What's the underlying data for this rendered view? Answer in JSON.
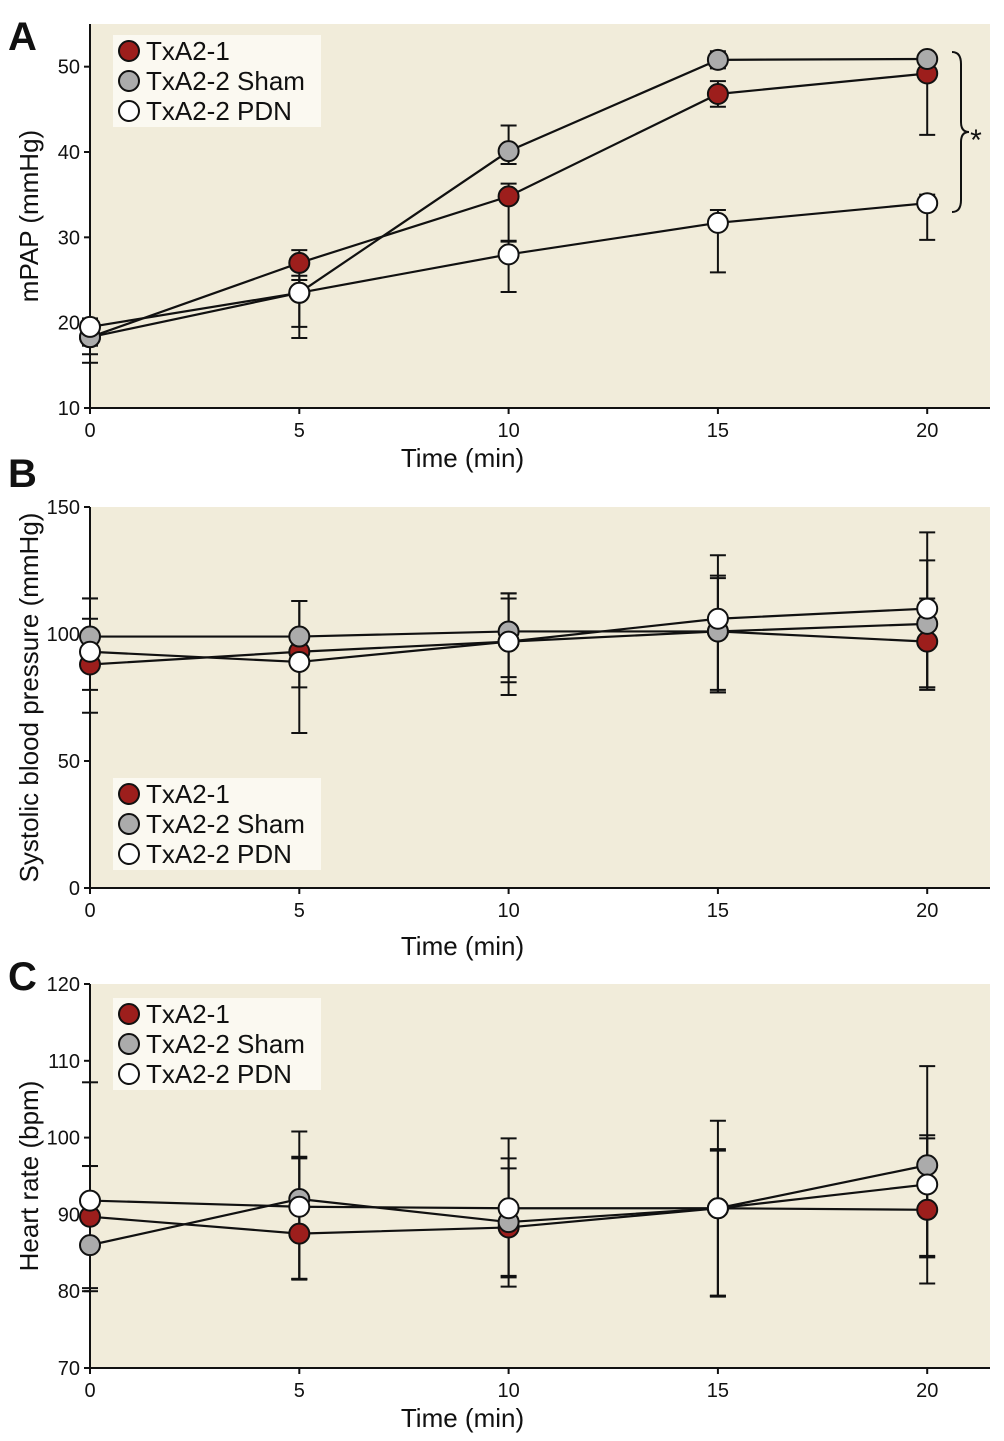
{
  "colors": {
    "plot_background": "#f1ecda",
    "legend_background": "#fbf9f1",
    "txa2_1": "#9d1e1c",
    "txa2_2_sham": "#ababab",
    "txa2_2_pdn": "#ffffff"
  },
  "significance_marker": "*",
  "chart_data": [
    {
      "panel": "A",
      "type": "line",
      "xlabel": "Time (min)",
      "ylabel": "mPAP (mmHg)",
      "x": [
        0,
        5,
        10,
        15,
        20
      ],
      "xticks": [
        "0",
        "5",
        "10",
        "15",
        "20"
      ],
      "xlim": [
        0,
        21.5
      ],
      "ylim": [
        10,
        55
      ],
      "yticks": [
        "10",
        "20",
        "30",
        "40",
        "50"
      ],
      "legend_position": "top-left",
      "series": [
        {
          "name": "TxA2-1",
          "marker_fill": "#9d1e1c",
          "values": [
            18.3,
            27.0,
            34.8,
            46.8,
            49.2
          ],
          "err_upper": [
            1.5,
            1.5,
            1.5,
            1.5,
            1.5
          ],
          "err_lower": [
            3.0,
            3.5,
            5.2,
            1.5,
            7.2
          ]
        },
        {
          "name": "TxA2-2 Sham",
          "marker_fill": "#ababab",
          "values": [
            18.3,
            23.5,
            40.1,
            50.8,
            50.9
          ],
          "err_upper": [
            1.5,
            2.0,
            3.0,
            1.0,
            0.5
          ],
          "err_lower": [
            2.0,
            5.3,
            1.5,
            1.0,
            0.5
          ]
        },
        {
          "name": "TxA2-2 PDN",
          "marker_fill": "#ffffff",
          "values": [
            19.5,
            23.5,
            28.0,
            31.7,
            34.0
          ],
          "err_upper": [
            1.0,
            1.5,
            1.5,
            1.5,
            1.0
          ],
          "err_lower": [
            2.2,
            4.0,
            4.4,
            5.8,
            4.3
          ]
        }
      ]
    },
    {
      "panel": "B",
      "type": "line",
      "xlabel": "Time (min)",
      "ylabel": "Systolic blood pressure (mmHg)",
      "x": [
        0,
        5,
        10,
        15,
        20
      ],
      "xticks": [
        "0",
        "5",
        "10",
        "15",
        "20"
      ],
      "xlim": [
        0,
        21.5
      ],
      "ylim": [
        0,
        150
      ],
      "yticks": [
        "0",
        "50",
        "100",
        "150"
      ],
      "legend_position": "bottom-left",
      "series": [
        {
          "name": "TxA2-1",
          "marker_fill": "#9d1e1c",
          "values": [
            88,
            93,
            97,
            101,
            97
          ],
          "err_upper": [
            26,
            20,
            17,
            21,
            32
          ],
          "err_lower": [
            10,
            14,
            16,
            23,
            19
          ]
        },
        {
          "name": "TxA2-2 Sham",
          "marker_fill": "#ababab",
          "values": [
            99,
            99,
            101,
            101,
            104
          ],
          "err_upper": [
            15,
            14,
            15,
            22,
            10
          ],
          "err_lower": [
            12,
            12,
            18,
            24,
            25
          ]
        },
        {
          "name": "TxA2-2 PDN",
          "marker_fill": "#ffffff",
          "values": [
            93,
            89,
            97,
            106,
            110
          ],
          "err_upper": [
            13,
            12,
            19,
            25,
            30
          ],
          "err_lower": [
            24,
            28,
            21,
            29,
            31
          ]
        }
      ]
    },
    {
      "panel": "C",
      "type": "line",
      "xlabel": "Time (min)",
      "ylabel": "Heart rate (bpm)",
      "x": [
        0,
        5,
        10,
        15,
        20
      ],
      "xticks": [
        "0",
        "5",
        "10",
        "15",
        "20"
      ],
      "xlim": [
        0,
        21.5
      ],
      "ylim": [
        70,
        120
      ],
      "yticks": [
        "70",
        "80",
        "90",
        "100",
        "110",
        "120"
      ],
      "legend_position": "top-left",
      "series": [
        {
          "name": "TxA2-1",
          "marker_fill": "#9d1e1c",
          "values": [
            89.7,
            87.5,
            88.3,
            90.8,
            90.6
          ],
          "err_upper": [
            6.6,
            9.8,
            7.7,
            11.4,
            9.3
          ],
          "err_lower": [
            9.7,
            6.0,
            6.5,
            11.4,
            6.0
          ]
        },
        {
          "name": "TxA2-2 Sham",
          "marker_fill": "#ababab",
          "values": [
            86.0,
            92.0,
            89.0,
            90.8,
            96.4
          ],
          "err_upper": [
            21.2,
            8.8,
            10.9,
            7.7,
            12.9
          ],
          "err_lower": [
            5.6,
            10.4,
            8.4,
            11.4,
            15.4
          ]
        },
        {
          "name": "TxA2-2 PDN",
          "marker_fill": "#ffffff",
          "values": [
            91.8,
            91.0,
            90.8,
            90.8,
            93.9
          ],
          "err_upper": [
            4.5,
            6.5,
            6.5,
            7.5,
            6.4
          ],
          "err_lower": [
            3.0,
            9.4,
            8.8,
            11.5,
            9.5
          ]
        }
      ]
    }
  ]
}
